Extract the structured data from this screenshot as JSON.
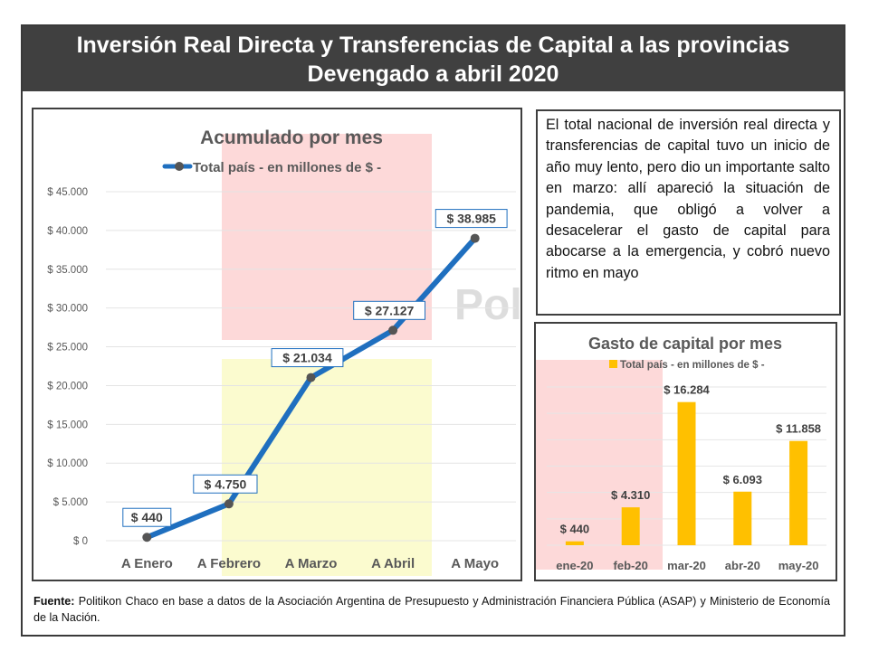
{
  "header": {
    "title_line1": "Inversión Real Directa y Transferencias de Capital a las provincias",
    "title_line2": "Devengado a abril 2020"
  },
  "watermark": "Politikon",
  "description": "El total nacional de inversión real directa y transferencias de capital tuvo un inicio de año muy lento, pero dio un importante salto en marzo: allí apareció la situación de pandemia, que obligó a volver a desacelerar el gasto de capital para abocarse a la emergencia, y cobró nuevo ritmo en mayo",
  "footer": {
    "label": "Fuente:",
    "text": "Politikon Chaco en base a datos de la Asociación Argentina de Presupuesto y Administración Financiera Pública (ASAP) y Ministerio de Economía de la Nación."
  },
  "colors": {
    "line": "#1f6fbf",
    "marker": "#555555",
    "bar": "#ffc000",
    "highlight_red": "#fdd9d9",
    "highlight_yellow": "#fbfbcf",
    "banner": "#404040"
  },
  "chart_data": [
    {
      "type": "line",
      "title": "Acumulado por mes",
      "legend": "Total país - en millones de $ -",
      "legend_position": "top",
      "categories": [
        "A Enero",
        "A Febrero",
        "A Marzo",
        "A Abril",
        "A Mayo"
      ],
      "values": [
        440,
        4750,
        21034,
        27127,
        38985
      ],
      "data_labels": [
        "$ 440",
        "$ 4.750",
        "$ 21.034",
        "$ 27.127",
        "$ 38.985"
      ],
      "ylim": [
        0,
        45000
      ],
      "yticks": [
        0,
        5000,
        10000,
        15000,
        20000,
        25000,
        30000,
        35000,
        40000,
        45000
      ],
      "ytick_labels": [
        "$ 0",
        "$ 5.000",
        "$ 10.000",
        "$ 15.000",
        "$ 20.000",
        "$ 25.000",
        "$ 30.000",
        "$ 35.000",
        "$ 40.000",
        "$ 45.000"
      ],
      "grid": true
    },
    {
      "type": "bar",
      "title": "Gasto de capital por mes",
      "legend": "Total país - en millones de $ -",
      "legend_position": "top",
      "categories": [
        "ene-20",
        "feb-20",
        "mar-20",
        "abr-20",
        "may-20"
      ],
      "values": [
        440,
        4310,
        16284,
        6093,
        11858
      ],
      "data_labels": [
        "$ 440",
        "$ 4.310",
        "$ 16.284",
        "$ 6.093",
        "$ 11.858"
      ],
      "ylim": [
        0,
        18000
      ],
      "grid": true
    }
  ]
}
